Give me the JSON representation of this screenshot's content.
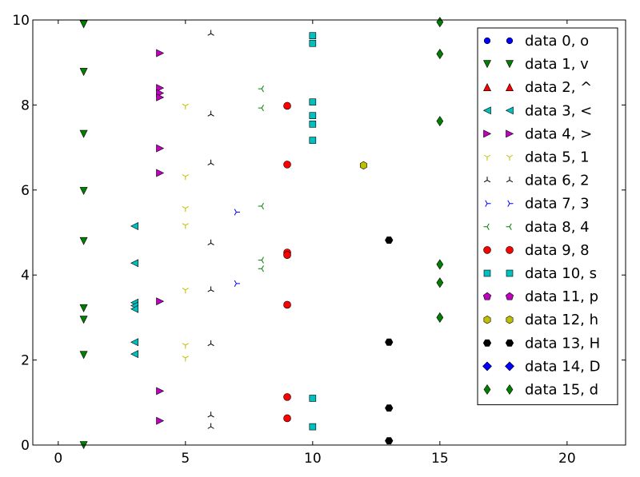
{
  "chart_data": {
    "type": "scatter",
    "title": "",
    "xlabel": "",
    "ylabel": "",
    "xlim": [
      -1,
      22.3
    ],
    "ylim": [
      0,
      10
    ],
    "xticks": [
      0,
      5,
      10,
      15,
      20
    ],
    "yticks": [
      0,
      2,
      4,
      6,
      8,
      10
    ],
    "xtick_labels": [
      "0",
      "5",
      "10",
      "15",
      "20"
    ],
    "ytick_labels": [
      "0",
      "2",
      "4",
      "6",
      "8",
      "10"
    ],
    "grid": false,
    "legend_position": "upper right",
    "series": [
      {
        "name": "data 0, o",
        "marker": "o",
        "color": "#0000ff",
        "points": []
      },
      {
        "name": "data 1, v",
        "marker": "v",
        "color": "#007f00",
        "points": [
          [
            1,
            9.9
          ],
          [
            1,
            8.78
          ],
          [
            1,
            7.32
          ],
          [
            1,
            5.98
          ],
          [
            1,
            4.8
          ],
          [
            1,
            3.22
          ],
          [
            1,
            2.95
          ],
          [
            1,
            2.12
          ],
          [
            1,
            0.0
          ]
        ]
      },
      {
        "name": "data 2, ^",
        "marker": "^",
        "color": "#ff0000",
        "points": []
      },
      {
        "name": "data 3, <",
        "marker": "<",
        "color": "#00bfbf",
        "points": [
          [
            3,
            5.15
          ],
          [
            3,
            4.28
          ],
          [
            3,
            3.35
          ],
          [
            3,
            3.28
          ],
          [
            3,
            3.2
          ],
          [
            3,
            2.42
          ],
          [
            3,
            2.14
          ]
        ]
      },
      {
        "name": "data 4, >",
        "marker": ">",
        "color": "#bf00bf",
        "points": [
          [
            4,
            9.22
          ],
          [
            4,
            8.4
          ],
          [
            4,
            8.28
          ],
          [
            4,
            8.18
          ],
          [
            4,
            6.98
          ],
          [
            4,
            6.4
          ],
          [
            4,
            3.38
          ],
          [
            4,
            1.27
          ],
          [
            4,
            0.57
          ]
        ]
      },
      {
        "name": "data 5, 1",
        "marker": "1",
        "color": "#bfbf00",
        "points": [
          [
            5,
            7.98
          ],
          [
            5,
            6.32
          ],
          [
            5,
            5.57
          ],
          [
            5,
            5.17
          ],
          [
            5,
            3.65
          ],
          [
            5,
            2.35
          ],
          [
            5,
            2.05
          ]
        ]
      },
      {
        "name": "data 6, 2",
        "marker": "2",
        "color": "#000000",
        "points": [
          [
            6,
            9.68
          ],
          [
            6,
            7.78
          ],
          [
            6,
            6.63
          ],
          [
            6,
            4.75
          ],
          [
            6,
            3.65
          ],
          [
            6,
            2.38
          ],
          [
            6,
            0.7
          ],
          [
            6,
            0.43
          ]
        ]
      },
      {
        "name": "data 7, 3",
        "marker": "3",
        "color": "#0000ff",
        "points": [
          [
            7,
            5.48
          ],
          [
            7,
            3.8
          ]
        ]
      },
      {
        "name": "data 8, 4",
        "marker": "4",
        "color": "#007f00",
        "points": [
          [
            8,
            8.38
          ],
          [
            8,
            7.93
          ],
          [
            8,
            5.62
          ],
          [
            8,
            4.35
          ],
          [
            8,
            4.15
          ]
        ]
      },
      {
        "name": "data 9, 8",
        "marker": "8",
        "color": "#ff0000",
        "points": [
          [
            9,
            7.98
          ],
          [
            9,
            6.6
          ],
          [
            9,
            4.53
          ],
          [
            9,
            4.47
          ],
          [
            9,
            3.3
          ],
          [
            9,
            1.13
          ],
          [
            9,
            0.63
          ]
        ]
      },
      {
        "name": "data 10, s",
        "marker": "s",
        "color": "#00bfbf",
        "points": [
          [
            10,
            9.63
          ],
          [
            10,
            9.45
          ],
          [
            10,
            8.07
          ],
          [
            10,
            7.75
          ],
          [
            10,
            7.55
          ],
          [
            10,
            7.17
          ],
          [
            10,
            1.1
          ],
          [
            10,
            0.43
          ]
        ]
      },
      {
        "name": "data 11, p",
        "marker": "p",
        "color": "#bf00bf",
        "points": []
      },
      {
        "name": "data 12, h",
        "marker": "h",
        "color": "#bfbf00",
        "points": [
          [
            12,
            6.58
          ]
        ]
      },
      {
        "name": "data 13, H",
        "marker": "H",
        "color": "#000000",
        "points": [
          [
            13,
            4.82
          ],
          [
            13,
            2.42
          ],
          [
            13,
            0.87
          ],
          [
            13,
            0.1
          ]
        ]
      },
      {
        "name": "data 14, D",
        "marker": "D",
        "color": "#0000ff",
        "points": []
      },
      {
        "name": "data 15, d",
        "marker": "d",
        "color": "#007f00",
        "points": [
          [
            15,
            9.95
          ],
          [
            15,
            9.2
          ],
          [
            15,
            7.62
          ],
          [
            15,
            4.25
          ],
          [
            15,
            3.82
          ],
          [
            15,
            3.0
          ]
        ]
      }
    ]
  }
}
